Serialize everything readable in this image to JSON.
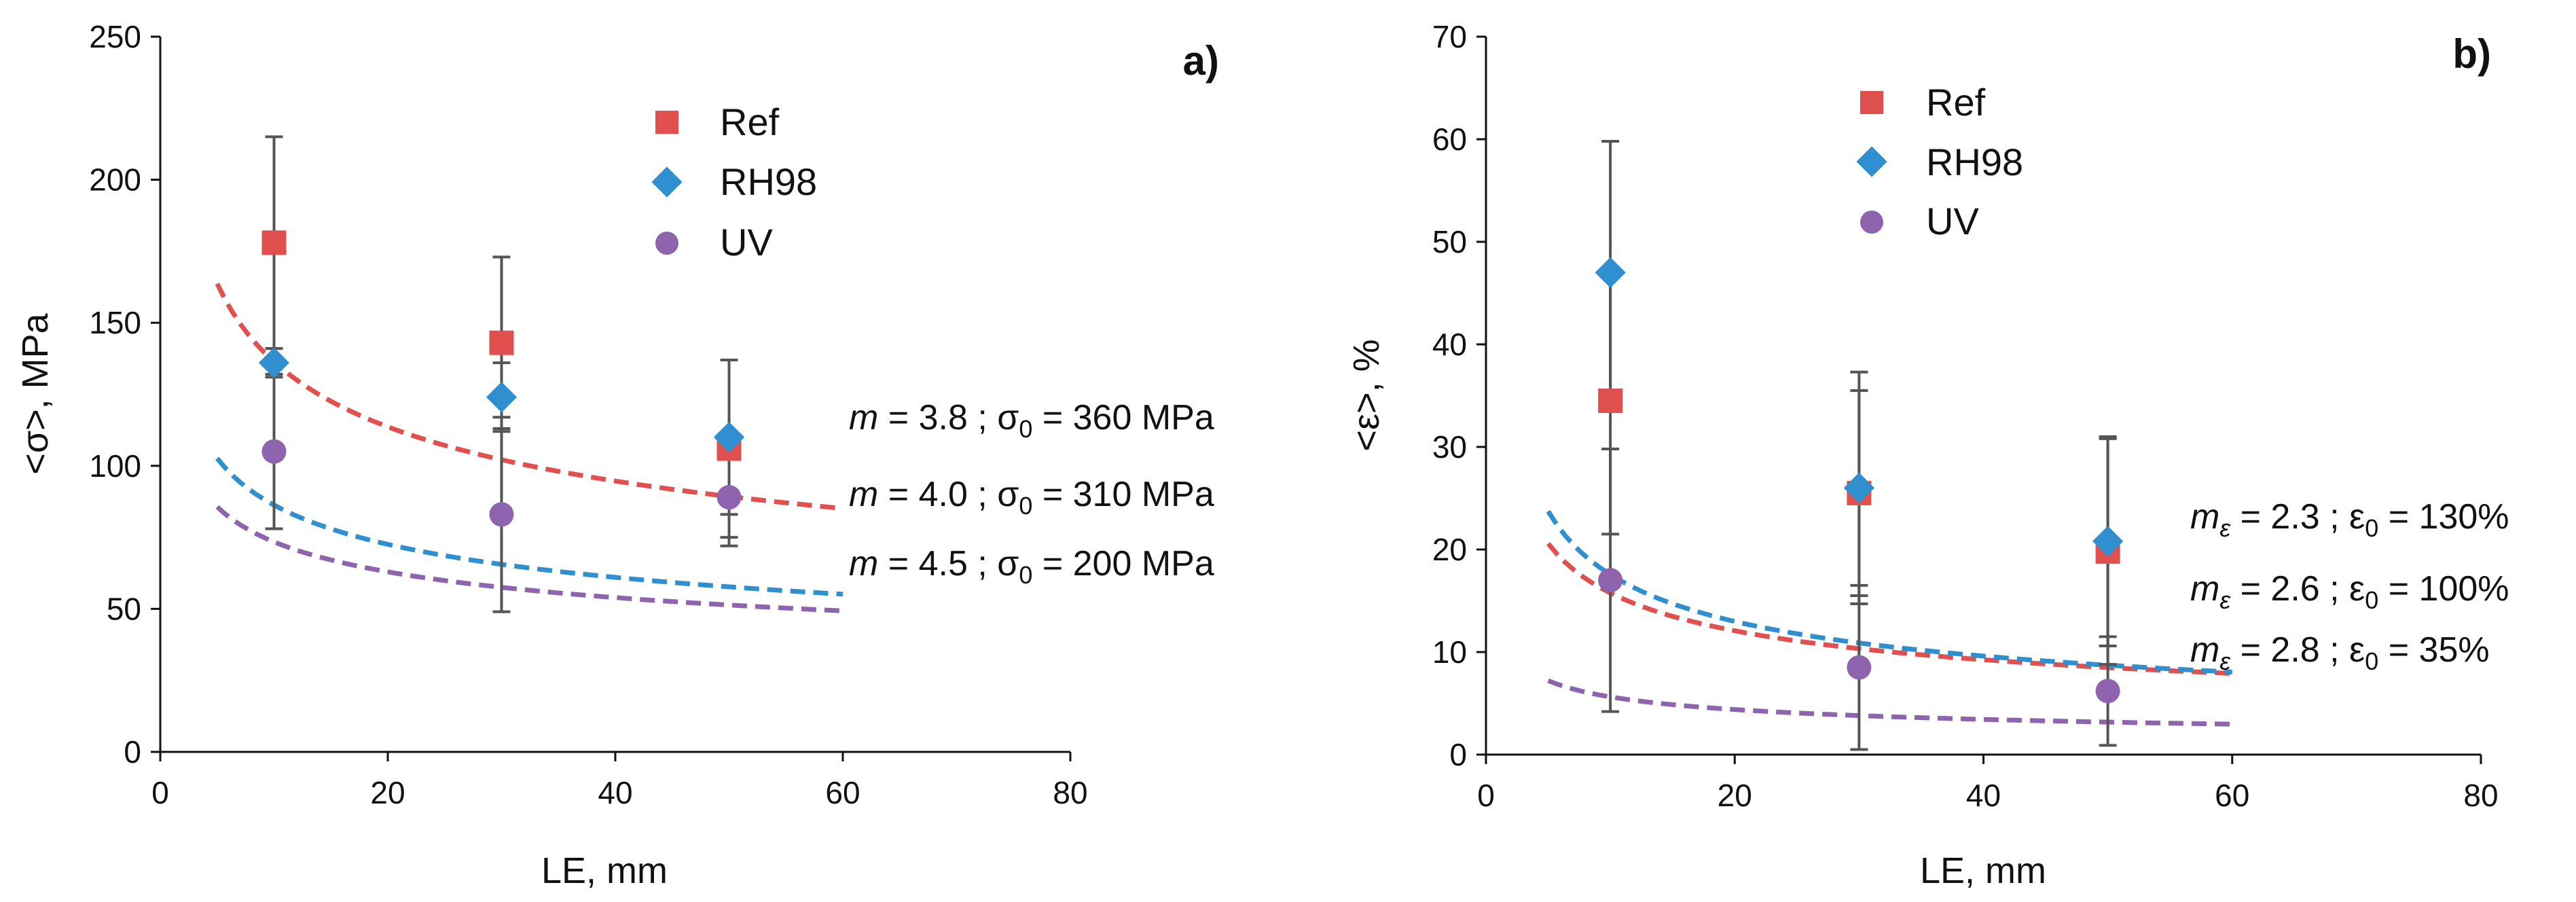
{
  "colors": {
    "ref": "#E0504F",
    "rh98": "#2F8FCF",
    "uv": "#8E64AE",
    "axis": "#111111",
    "errorbar": "#555555"
  },
  "chart_data": [
    {
      "type": "scatter",
      "panel_label": "a)",
      "xlabel": "LE, mm",
      "ylabel": "<σ>, MPa",
      "xlim": [
        0,
        80
      ],
      "ylim": [
        0,
        250
      ],
      "xticks": [
        "0",
        "20",
        "40",
        "60",
        "80"
      ],
      "yticks": [
        "0",
        "50",
        "100",
        "150",
        "200",
        "250"
      ],
      "legend_position": "top-center",
      "series": [
        {
          "key": "ref",
          "name": "Ref",
          "marker": "square",
          "x": [
            10,
            30,
            50
          ],
          "y": [
            178,
            143,
            106
          ],
          "yerr": [
            37,
            30,
            31
          ]
        },
        {
          "key": "rh98",
          "name": "RH98",
          "marker": "diamond",
          "x": [
            10,
            30,
            50
          ],
          "y": [
            136,
            124,
            110
          ],
          "yerr": [
            5,
            12,
            27
          ]
        },
        {
          "key": "uv",
          "name": "UV",
          "marker": "circle",
          "x": [
            10,
            30,
            50
          ],
          "y": [
            105,
            83,
            89
          ],
          "yerr": [
            27,
            34,
            17
          ]
        }
      ],
      "fits": [
        {
          "key": "ref",
          "m": 3.8,
          "s0": 360,
          "l0": 0.25,
          "x_range": [
            5,
            60
          ],
          "text_left": "= 3.8 ; σ",
          "text_mid": "= 360 MPa"
        },
        {
          "key": "rh98",
          "m": 4.0,
          "s0": 310,
          "l0": 0.06,
          "x_range": [
            5,
            60
          ],
          "text_left": "= 4.0 ; σ",
          "text_mid": "= 310 MPa"
        },
        {
          "key": "uv",
          "m": 4.5,
          "s0": 200,
          "l0": 0.11,
          "x_range": [
            5,
            60
          ],
          "text_left": "= 4.5 ; σ",
          "text_mid": "= 200 MPa"
        }
      ],
      "param_symbol": "m",
      "param_sub": "",
      "value_sub": "0"
    },
    {
      "type": "scatter",
      "panel_label": "b)",
      "xlabel": "LE, mm",
      "ylabel": "<ε>, %",
      "xlim": [
        0,
        80
      ],
      "ylim": [
        0,
        70
      ],
      "xticks": [
        "0",
        "20",
        "40",
        "60",
        "80"
      ],
      "yticks": [
        "0",
        "10",
        "20",
        "30",
        "40",
        "50",
        "60",
        "70"
      ],
      "legend_position": "top-center",
      "series": [
        {
          "key": "ref",
          "name": "Ref",
          "marker": "square",
          "x": [
            10,
            30,
            50
          ],
          "y": [
            34.5,
            25.5,
            19.8
          ],
          "yerr": [
            13,
            10,
            11
          ]
        },
        {
          "key": "rh98",
          "name": "RH98",
          "marker": "diamond",
          "x": [
            10,
            30,
            50
          ],
          "y": [
            47,
            26,
            20.8
          ],
          "yerr": [
            12.8,
            11.3,
            10.2
          ]
        },
        {
          "key": "uv",
          "name": "UV",
          "marker": "circle",
          "x": [
            10,
            30,
            50
          ],
          "y": [
            17,
            8.5,
            6.2
          ],
          "yerr": [
            12.8,
            8,
            5.3
          ]
        }
      ],
      "fits": [
        {
          "key": "ref",
          "m": 2.6,
          "s0": 100,
          "l0": 0.082,
          "x_range": [
            5,
            60
          ],
          "text_left": "= 2.6 ; ε",
          "text_mid": "= 100%"
        },
        {
          "key": "rh98",
          "m": 2.3,
          "s0": 130,
          "l0": 0.1,
          "x_range": [
            5,
            60
          ],
          "text_left": "= 2.3 ; ε",
          "text_mid": "= 130%"
        },
        {
          "key": "uv",
          "m": 2.8,
          "s0": 35,
          "l0": 0.06,
          "x_range": [
            5,
            60
          ],
          "text_left": "= 2.8 ; ε",
          "text_mid": "= 35%"
        }
      ],
      "param_symbol": "m",
      "param_sub": "ε",
      "value_sub": "0"
    }
  ]
}
